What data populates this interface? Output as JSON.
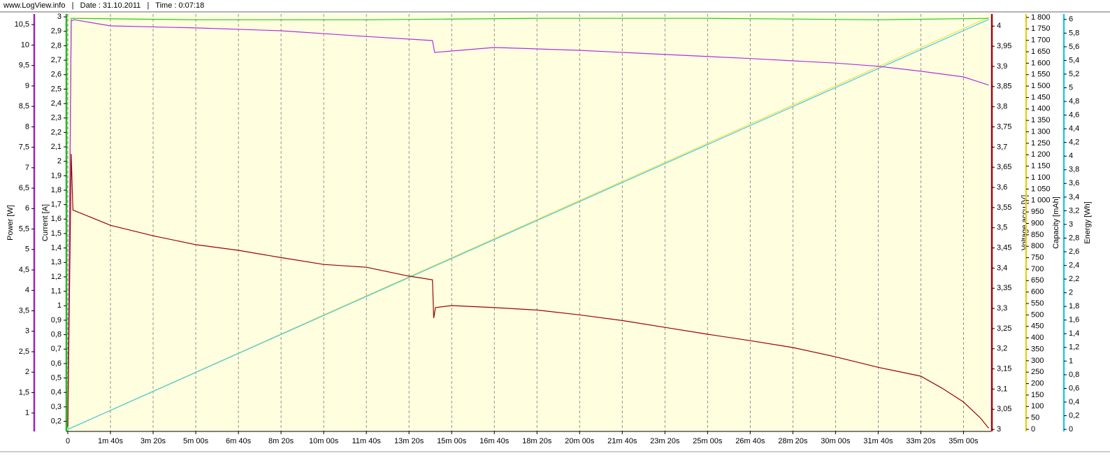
{
  "chart_data": {
    "type": "line",
    "header": "www.LogView.info   |   Date : 31.10.2011   |   Time : 0:07:18",
    "background": "#ffffe0",
    "grid": true,
    "xlim": [
      0,
      2160
    ],
    "xticks": [
      0,
      {
        "value": 100,
        "label": "1m 40s"
      },
      {
        "value": 200,
        "label": "3m 20s"
      },
      {
        "value": 300,
        "label": "5m 00s"
      },
      {
        "value": 400,
        "label": "6m 40s"
      },
      {
        "value": 500,
        "label": "8m 20s"
      },
      {
        "value": 600,
        "label": "10m 00s"
      },
      {
        "value": 700,
        "label": "11m 40s"
      },
      {
        "value": 800,
        "label": "13m 20s"
      },
      {
        "value": 900,
        "label": "15m 00s"
      },
      {
        "value": 1000,
        "label": "16m 40s"
      },
      {
        "value": 1100,
        "label": "18m 20s"
      },
      {
        "value": 1200,
        "label": "20m 00s"
      },
      {
        "value": 1300,
        "label": "21m 40s"
      },
      {
        "value": 1400,
        "label": "23m 20s"
      },
      {
        "value": 1500,
        "label": "25m 00s"
      },
      {
        "value": 1600,
        "label": "26m 40s"
      },
      {
        "value": 1700,
        "label": "28m 20s"
      },
      {
        "value": 1800,
        "label": "30m 00s"
      },
      {
        "value": 1900,
        "label": "31m 40s"
      },
      {
        "value": 2000,
        "label": "33m 20s"
      },
      {
        "value": 2100,
        "label": "35m 00s"
      }
    ],
    "y_axes": [
      {
        "label": "Power [W]",
        "color": "#a020c0",
        "lim": [
          0.55,
          10.76
        ],
        "ticks": [
          1,
          {
            "value": 1.5,
            "label": "1,5"
          },
          2,
          {
            "value": 2.5,
            "label": "2,5"
          },
          3,
          {
            "value": 3.5,
            "label": "3,5"
          },
          4,
          {
            "value": 4.5,
            "label": "4,5"
          },
          5,
          {
            "value": 5.5,
            "label": "5,5"
          },
          6,
          {
            "value": 6.5,
            "label": "6,5"
          },
          7,
          {
            "value": 7.5,
            "label": "7,5"
          },
          8,
          {
            "value": 8.5,
            "label": "8,5"
          },
          9,
          {
            "value": 9.5,
            "label": "9,5"
          },
          10,
          {
            "value": 10.5,
            "label": "10,5"
          }
        ]
      },
      {
        "label": "Current [A]",
        "color": "#22bb22",
        "lim": [
          0.13,
          3.02
        ],
        "ticks": [
          {
            "value": 0.2,
            "label": "0,2"
          },
          {
            "value": 0.3,
            "label": "0,3"
          },
          {
            "value": 0.4,
            "label": "0,4"
          },
          {
            "value": 0.5,
            "label": "0,5"
          },
          {
            "value": 0.6,
            "label": "0,6"
          },
          {
            "value": 0.7,
            "label": "0,7"
          },
          {
            "value": 0.8,
            "label": "0,8"
          },
          {
            "value": 0.9,
            "label": "0,9"
          },
          1,
          {
            "value": 1.1,
            "label": "1,1"
          },
          {
            "value": 1.2,
            "label": "1,2"
          },
          {
            "value": 1.3,
            "label": "1,3"
          },
          {
            "value": 1.4,
            "label": "1,4"
          },
          {
            "value": 1.5,
            "label": "1,5"
          },
          {
            "value": 1.6,
            "label": "1,6"
          },
          {
            "value": 1.7,
            "label": "1,7"
          },
          {
            "value": 1.8,
            "label": "1,8"
          },
          {
            "value": 1.9,
            "label": "1,9"
          },
          2,
          {
            "value": 2.1,
            "label": "2,1"
          },
          {
            "value": 2.2,
            "label": "2,2"
          },
          {
            "value": 2.3,
            "label": "2,3"
          },
          {
            "value": 2.4,
            "label": "2,4"
          },
          {
            "value": 2.5,
            "label": "2,5"
          },
          {
            "value": 2.6,
            "label": "2,6"
          },
          {
            "value": 2.7,
            "label": "2,7"
          },
          {
            "value": 2.8,
            "label": "2,8"
          },
          {
            "value": 2.9,
            "label": "2,9"
          },
          3
        ]
      },
      {
        "label": "Voltage accu [V]",
        "color": "#b00000",
        "lim": [
          2.995,
          4.03
        ],
        "ticks": [
          3,
          {
            "value": 3.05,
            "label": "3,05"
          },
          {
            "value": 3.1,
            "label": "3,1"
          },
          {
            "value": 3.15,
            "label": "3,15"
          },
          {
            "value": 3.2,
            "label": "3,2"
          },
          {
            "value": 3.25,
            "label": "3,25"
          },
          {
            "value": 3.3,
            "label": "3,3"
          },
          {
            "value": 3.35,
            "label": "3,35"
          },
          {
            "value": 3.4,
            "label": "3,4"
          },
          {
            "value": 3.45,
            "label": "3,45"
          },
          {
            "value": 3.5,
            "label": "3,5"
          },
          {
            "value": 3.55,
            "label": "3,55"
          },
          {
            "value": 3.6,
            "label": "3,6"
          },
          {
            "value": 3.65,
            "label": "3,65"
          },
          {
            "value": 3.7,
            "label": "3,7"
          },
          {
            "value": 3.75,
            "label": "3,75"
          },
          {
            "value": 3.8,
            "label": "3,8"
          },
          {
            "value": 3.85,
            "label": "3,85"
          },
          {
            "value": 3.9,
            "label": "3,9"
          },
          {
            "value": 3.95,
            "label": "3,95"
          },
          4
        ]
      },
      {
        "label": "Capacity [mAh]",
        "color": "#e8d020",
        "lim": [
          -9,
          1815
        ],
        "ticks": [
          0,
          50,
          100,
          150,
          200,
          250,
          300,
          350,
          400,
          450,
          500,
          550,
          600,
          650,
          700,
          750,
          800,
          850,
          900,
          950,
          {
            "value": 1000,
            "label": "1 000"
          },
          {
            "value": 1050,
            "label": "1 050"
          },
          {
            "value": 1100,
            "label": "1 100"
          },
          {
            "value": 1150,
            "label": "1 150"
          },
          {
            "value": 1200,
            "label": "1 200"
          },
          {
            "value": 1250,
            "label": "1 250"
          },
          {
            "value": 1300,
            "label": "1 300"
          },
          {
            "value": 1350,
            "label": "1 350"
          },
          {
            "value": 1400,
            "label": "1 400"
          },
          {
            "value": 1450,
            "label": "1 450"
          },
          {
            "value": 1500,
            "label": "1 500"
          },
          {
            "value": 1550,
            "label": "1 550"
          },
          {
            "value": 1600,
            "label": "1 600"
          },
          {
            "value": 1650,
            "label": "1 650"
          },
          {
            "value": 1700,
            "label": "1 700"
          },
          {
            "value": 1750,
            "label": "1 750"
          },
          {
            "value": 1800,
            "label": "1 800"
          }
        ]
      },
      {
        "label": "Energy [Wh]",
        "color": "#30c0e0",
        "lim": [
          -0.03,
          6.08
        ],
        "ticks": [
          0,
          {
            "value": 0.2,
            "label": "0,2"
          },
          {
            "value": 0.4,
            "label": "0,4"
          },
          {
            "value": 0.6,
            "label": "0,6"
          },
          {
            "value": 0.8,
            "label": "0,8"
          },
          1,
          {
            "value": 1.2,
            "label": "1,2"
          },
          {
            "value": 1.4,
            "label": "1,4"
          },
          {
            "value": 1.6,
            "label": "1,6"
          },
          {
            "value": 1.8,
            "label": "1,8"
          },
          2,
          {
            "value": 2.2,
            "label": "2,2"
          },
          {
            "value": 2.4,
            "label": "2,4"
          },
          {
            "value": 2.6,
            "label": "2,6"
          },
          {
            "value": 2.8,
            "label": "2,8"
          },
          3,
          {
            "value": 3.2,
            "label": "3,2"
          },
          {
            "value": 3.4,
            "label": "3,4"
          },
          {
            "value": 3.6,
            "label": "3,6"
          },
          {
            "value": 3.8,
            "label": "3,8"
          },
          4,
          {
            "value": 4.2,
            "label": "4,2"
          },
          {
            "value": 4.4,
            "label": "4,4"
          },
          {
            "value": 4.6,
            "label": "4,6"
          },
          {
            "value": 4.8,
            "label": "4,8"
          },
          5,
          {
            "value": 5.2,
            "label": "5,2"
          },
          {
            "value": 5.4,
            "label": "5,4"
          },
          {
            "value": 5.6,
            "label": "5,6"
          },
          {
            "value": 5.8,
            "label": "5,8"
          },
          6
        ]
      }
    ],
    "series": [
      {
        "name": "Capacity",
        "color": "#f0e040",
        "axis": 3,
        "x": [
          0,
          2159
        ],
        "values": [
          0,
          1800
        ]
      },
      {
        "name": "Energy",
        "color": "#40c8f0",
        "axis": 4,
        "x": [
          0,
          2159
        ],
        "values": [
          0,
          6.0
        ]
      },
      {
        "name": "Current",
        "color": "#22cc22",
        "axis": 1,
        "x": [
          0,
          4,
          8,
          300,
          700,
          1100,
          1500,
          1900,
          2159
        ],
        "values": [
          0.15,
          1.5,
          2.99,
          2.98,
          2.98,
          2.99,
          2.99,
          2.98,
          2.99
        ]
      },
      {
        "name": "Power",
        "color": "#b030e0",
        "axis": 0,
        "x": [
          0,
          8,
          15,
          100,
          300,
          500,
          700,
          855,
          860,
          1000,
          1200,
          1400,
          1600,
          1800,
          1900,
          2000,
          2100,
          2159
        ],
        "values": [
          0.68,
          10.59,
          10.62,
          10.47,
          10.42,
          10.35,
          10.21,
          10.11,
          9.82,
          9.94,
          9.87,
          9.77,
          9.67,
          9.56,
          9.48,
          9.36,
          9.22,
          9.02
        ]
      },
      {
        "name": "Voltage accu",
        "color": "#a00000",
        "axis": 2,
        "x": [
          0,
          8,
          12,
          100,
          200,
          300,
          400,
          500,
          600,
          700,
          800,
          855,
          858,
          862,
          900,
          1000,
          1100,
          1200,
          1300,
          1400,
          1500,
          1600,
          1700,
          1800,
          1900,
          2000,
          2050,
          2100,
          2140,
          2159
        ],
        "values": [
          3.007,
          3.683,
          3.544,
          3.506,
          3.48,
          3.458,
          3.444,
          3.426,
          3.409,
          3.402,
          3.38,
          3.371,
          3.276,
          3.302,
          3.307,
          3.302,
          3.296,
          3.284,
          3.27,
          3.253,
          3.236,
          3.22,
          3.203,
          3.18,
          3.154,
          3.132,
          3.102,
          3.068,
          3.028,
          3.003
        ]
      }
    ]
  }
}
